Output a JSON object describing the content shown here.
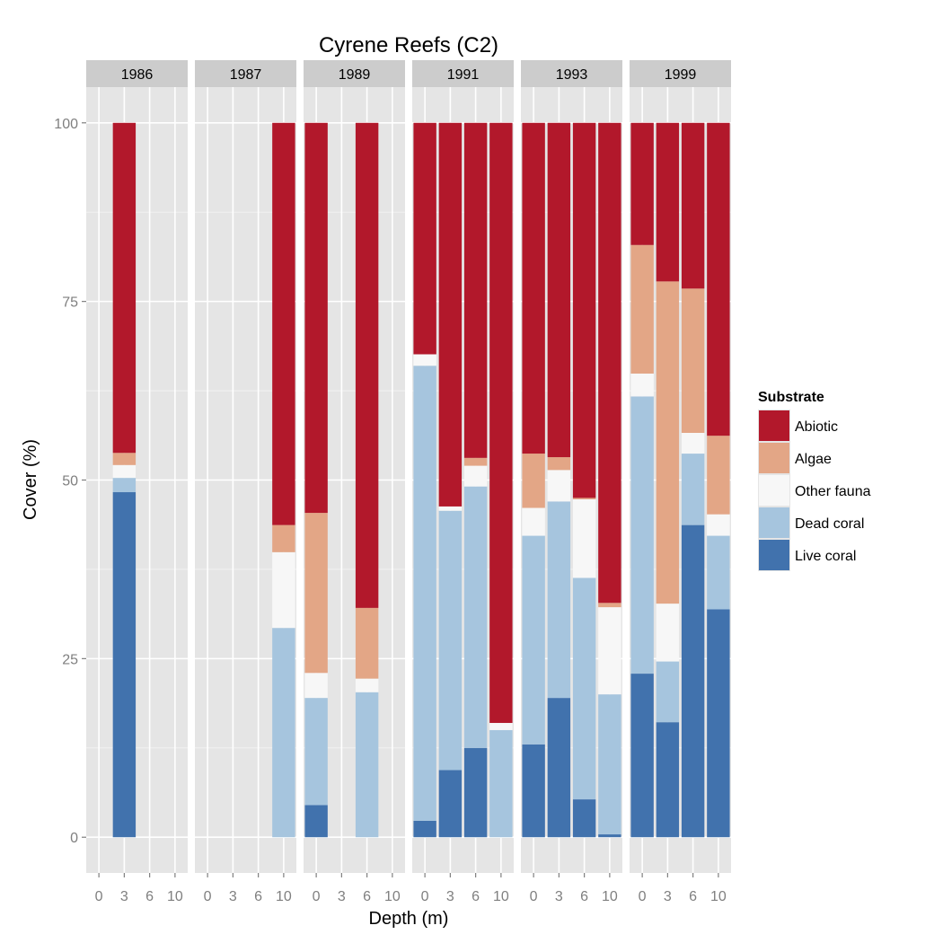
{
  "chart_data": {
    "type": "bar",
    "stacked": true,
    "faceted_by": "year",
    "title": "Cyrene Reefs (C2)",
    "xlabel": "Depth (m)",
    "ylabel": "Cover (%)",
    "ylim": [
      -5,
      105
    ],
    "yticks": [
      0,
      25,
      50,
      75,
      100
    ],
    "ytick_labels": [
      "0",
      "25",
      "50",
      "75",
      "100"
    ],
    "categories": [
      "0",
      "3",
      "6",
      "10"
    ],
    "grid": true,
    "legend": {
      "title": "Substrate",
      "placement": "right",
      "entries": [
        {
          "name": "Abiotic",
          "color": "#b2182b"
        },
        {
          "name": "Algae",
          "color": "#e3a686"
        },
        {
          "name": "Other fauna",
          "color": "#f7f7f7"
        },
        {
          "name": "Dead coral",
          "color": "#a6c5de"
        },
        {
          "name": "Live coral",
          "color": "#4172ad"
        }
      ]
    },
    "stack_order": [
      "Live coral",
      "Dead coral",
      "Other fauna",
      "Algae",
      "Abiotic"
    ],
    "facets": [
      {
        "label": "1986",
        "bars": [
          {
            "depth": "3",
            "values": {
              "Live coral": 48.3,
              "Dead coral": 2.0,
              "Other fauna": 1.8,
              "Algae": 1.7,
              "Abiotic": 46.2
            }
          }
        ]
      },
      {
        "label": "1987",
        "bars": [
          {
            "depth": "10",
            "values": {
              "Live coral": 0,
              "Dead coral": 29.3,
              "Other fauna": 10.6,
              "Algae": 3.8,
              "Abiotic": 56.3
            }
          }
        ]
      },
      {
        "label": "1989",
        "bars": [
          {
            "depth": "0",
            "values": {
              "Live coral": 4.5,
              "Dead coral": 15.0,
              "Other fauna": 3.5,
              "Algae": 22.4,
              "Abiotic": 54.6
            }
          },
          {
            "depth": "6",
            "values": {
              "Live coral": 0,
              "Dead coral": 20.3,
              "Other fauna": 1.9,
              "Algae": 9.9,
              "Abiotic": 67.9
            }
          }
        ]
      },
      {
        "label": "1991",
        "bars": [
          {
            "depth": "0",
            "values": {
              "Live coral": 2.3,
              "Dead coral": 63.7,
              "Other fauna": 1.6,
              "Algae": 0,
              "Abiotic": 32.4
            }
          },
          {
            "depth": "3",
            "values": {
              "Live coral": 9.4,
              "Dead coral": 36.3,
              "Other fauna": 0.6,
              "Algae": 0,
              "Abiotic": 53.7
            }
          },
          {
            "depth": "6",
            "values": {
              "Live coral": 12.5,
              "Dead coral": 36.6,
              "Other fauna": 2.9,
              "Algae": 1.1,
              "Abiotic": 46.9
            }
          },
          {
            "depth": "10",
            "values": {
              "Live coral": 0,
              "Dead coral": 15.0,
              "Other fauna": 1.0,
              "Algae": 0,
              "Abiotic": 84.0
            }
          }
        ]
      },
      {
        "label": "1993",
        "bars": [
          {
            "depth": "0",
            "values": {
              "Live coral": 13.0,
              "Dead coral": 29.2,
              "Other fauna": 3.9,
              "Algae": 7.6,
              "Abiotic": 46.3
            }
          },
          {
            "depth": "3",
            "values": {
              "Live coral": 19.5,
              "Dead coral": 27.5,
              "Other fauna": 4.4,
              "Algae": 1.8,
              "Abiotic": 46.8
            }
          },
          {
            "depth": "6",
            "values": {
              "Live coral": 5.3,
              "Dead coral": 31.0,
              "Other fauna": 11.0,
              "Algae": 0.2,
              "Abiotic": 52.5
            }
          },
          {
            "depth": "10",
            "values": {
              "Live coral": 0.4,
              "Dead coral": 19.6,
              "Other fauna": 12.2,
              "Algae": 0.6,
              "Abiotic": 67.2
            }
          }
        ]
      },
      {
        "label": "1999",
        "bars": [
          {
            "depth": "0",
            "values": {
              "Live coral": 22.9,
              "Dead coral": 38.8,
              "Other fauna": 3.2,
              "Algae": 18.0,
              "Abiotic": 17.1
            }
          },
          {
            "depth": "3",
            "values": {
              "Live coral": 16.1,
              "Dead coral": 8.5,
              "Other fauna": 8.1,
              "Algae": 45.1,
              "Abiotic": 22.2
            }
          },
          {
            "depth": "6",
            "values": {
              "Live coral": 43.7,
              "Dead coral": 10.0,
              "Other fauna": 2.9,
              "Algae": 20.2,
              "Abiotic": 23.2
            }
          },
          {
            "depth": "10",
            "values": {
              "Live coral": 31.9,
              "Dead coral": 10.3,
              "Other fauna": 3.0,
              "Algae": 11.0,
              "Abiotic": 43.8
            }
          }
        ]
      }
    ]
  }
}
